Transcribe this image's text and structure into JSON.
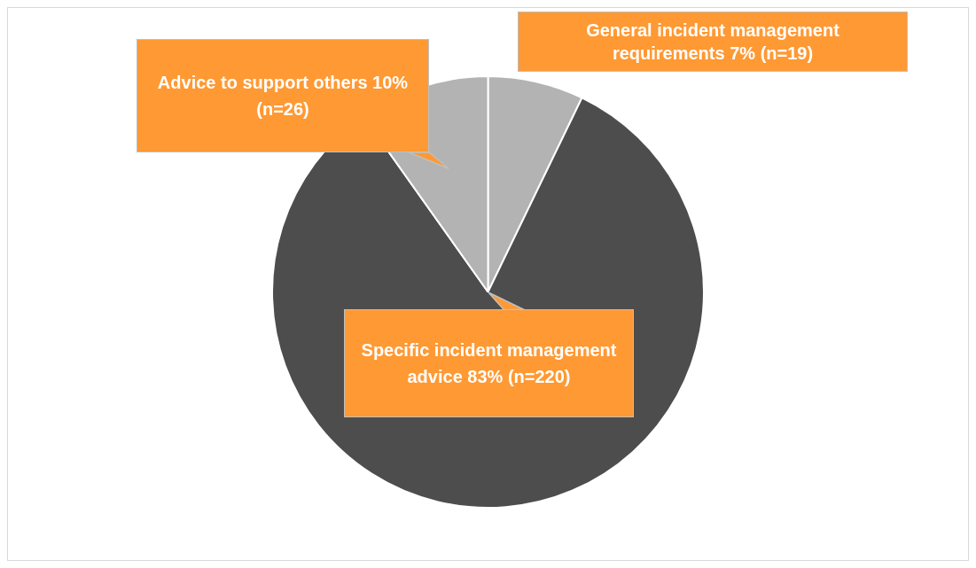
{
  "chart_data": {
    "type": "pie",
    "categories": [
      "General incident management requirements",
      "Specific incident management advice",
      "Advice to support others"
    ],
    "values": [
      19,
      220,
      26
    ],
    "colors": [
      "#b3b3b3",
      "#4d4d4d",
      "#b3b3b3"
    ],
    "value_labels": [
      "7% (n=19)",
      "83% (n=220)",
      "10% (n=26)"
    ],
    "legend": false
  }
}
